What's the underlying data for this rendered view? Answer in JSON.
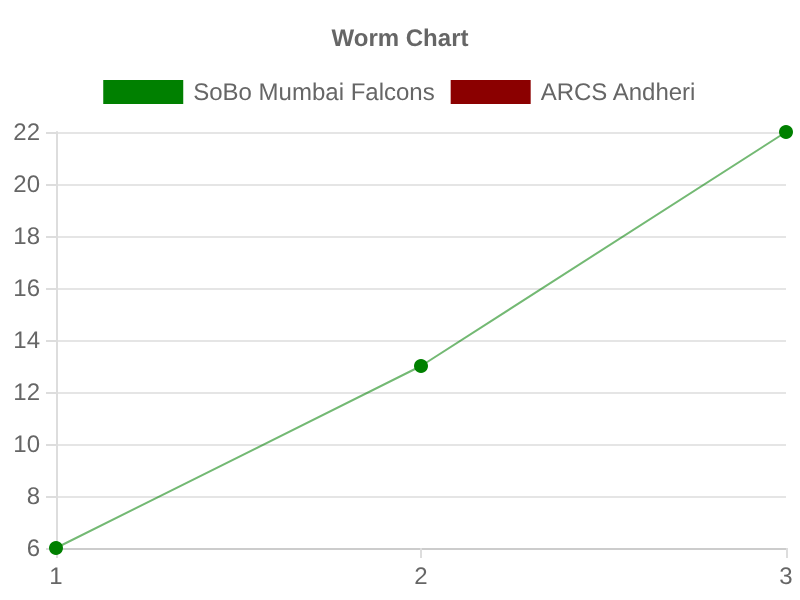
{
  "chart_data": {
    "type": "line",
    "title": "Worm Chart",
    "x": [
      1,
      2,
      3
    ],
    "xlim": [
      1,
      3
    ],
    "xticks": [
      1,
      2,
      3
    ],
    "ylim": [
      6,
      22
    ],
    "yticks": [
      6,
      8,
      10,
      12,
      14,
      16,
      18,
      20,
      22
    ],
    "grid": "y",
    "legend": "top",
    "marker": "circle",
    "series": [
      {
        "name": "SoBo Mumbai Falcons",
        "color": "#008000",
        "values": [
          6,
          13,
          22
        ]
      },
      {
        "name": "ARCS Andheri",
        "color": "#8b0000",
        "values": [
          null,
          null,
          null
        ]
      }
    ]
  }
}
